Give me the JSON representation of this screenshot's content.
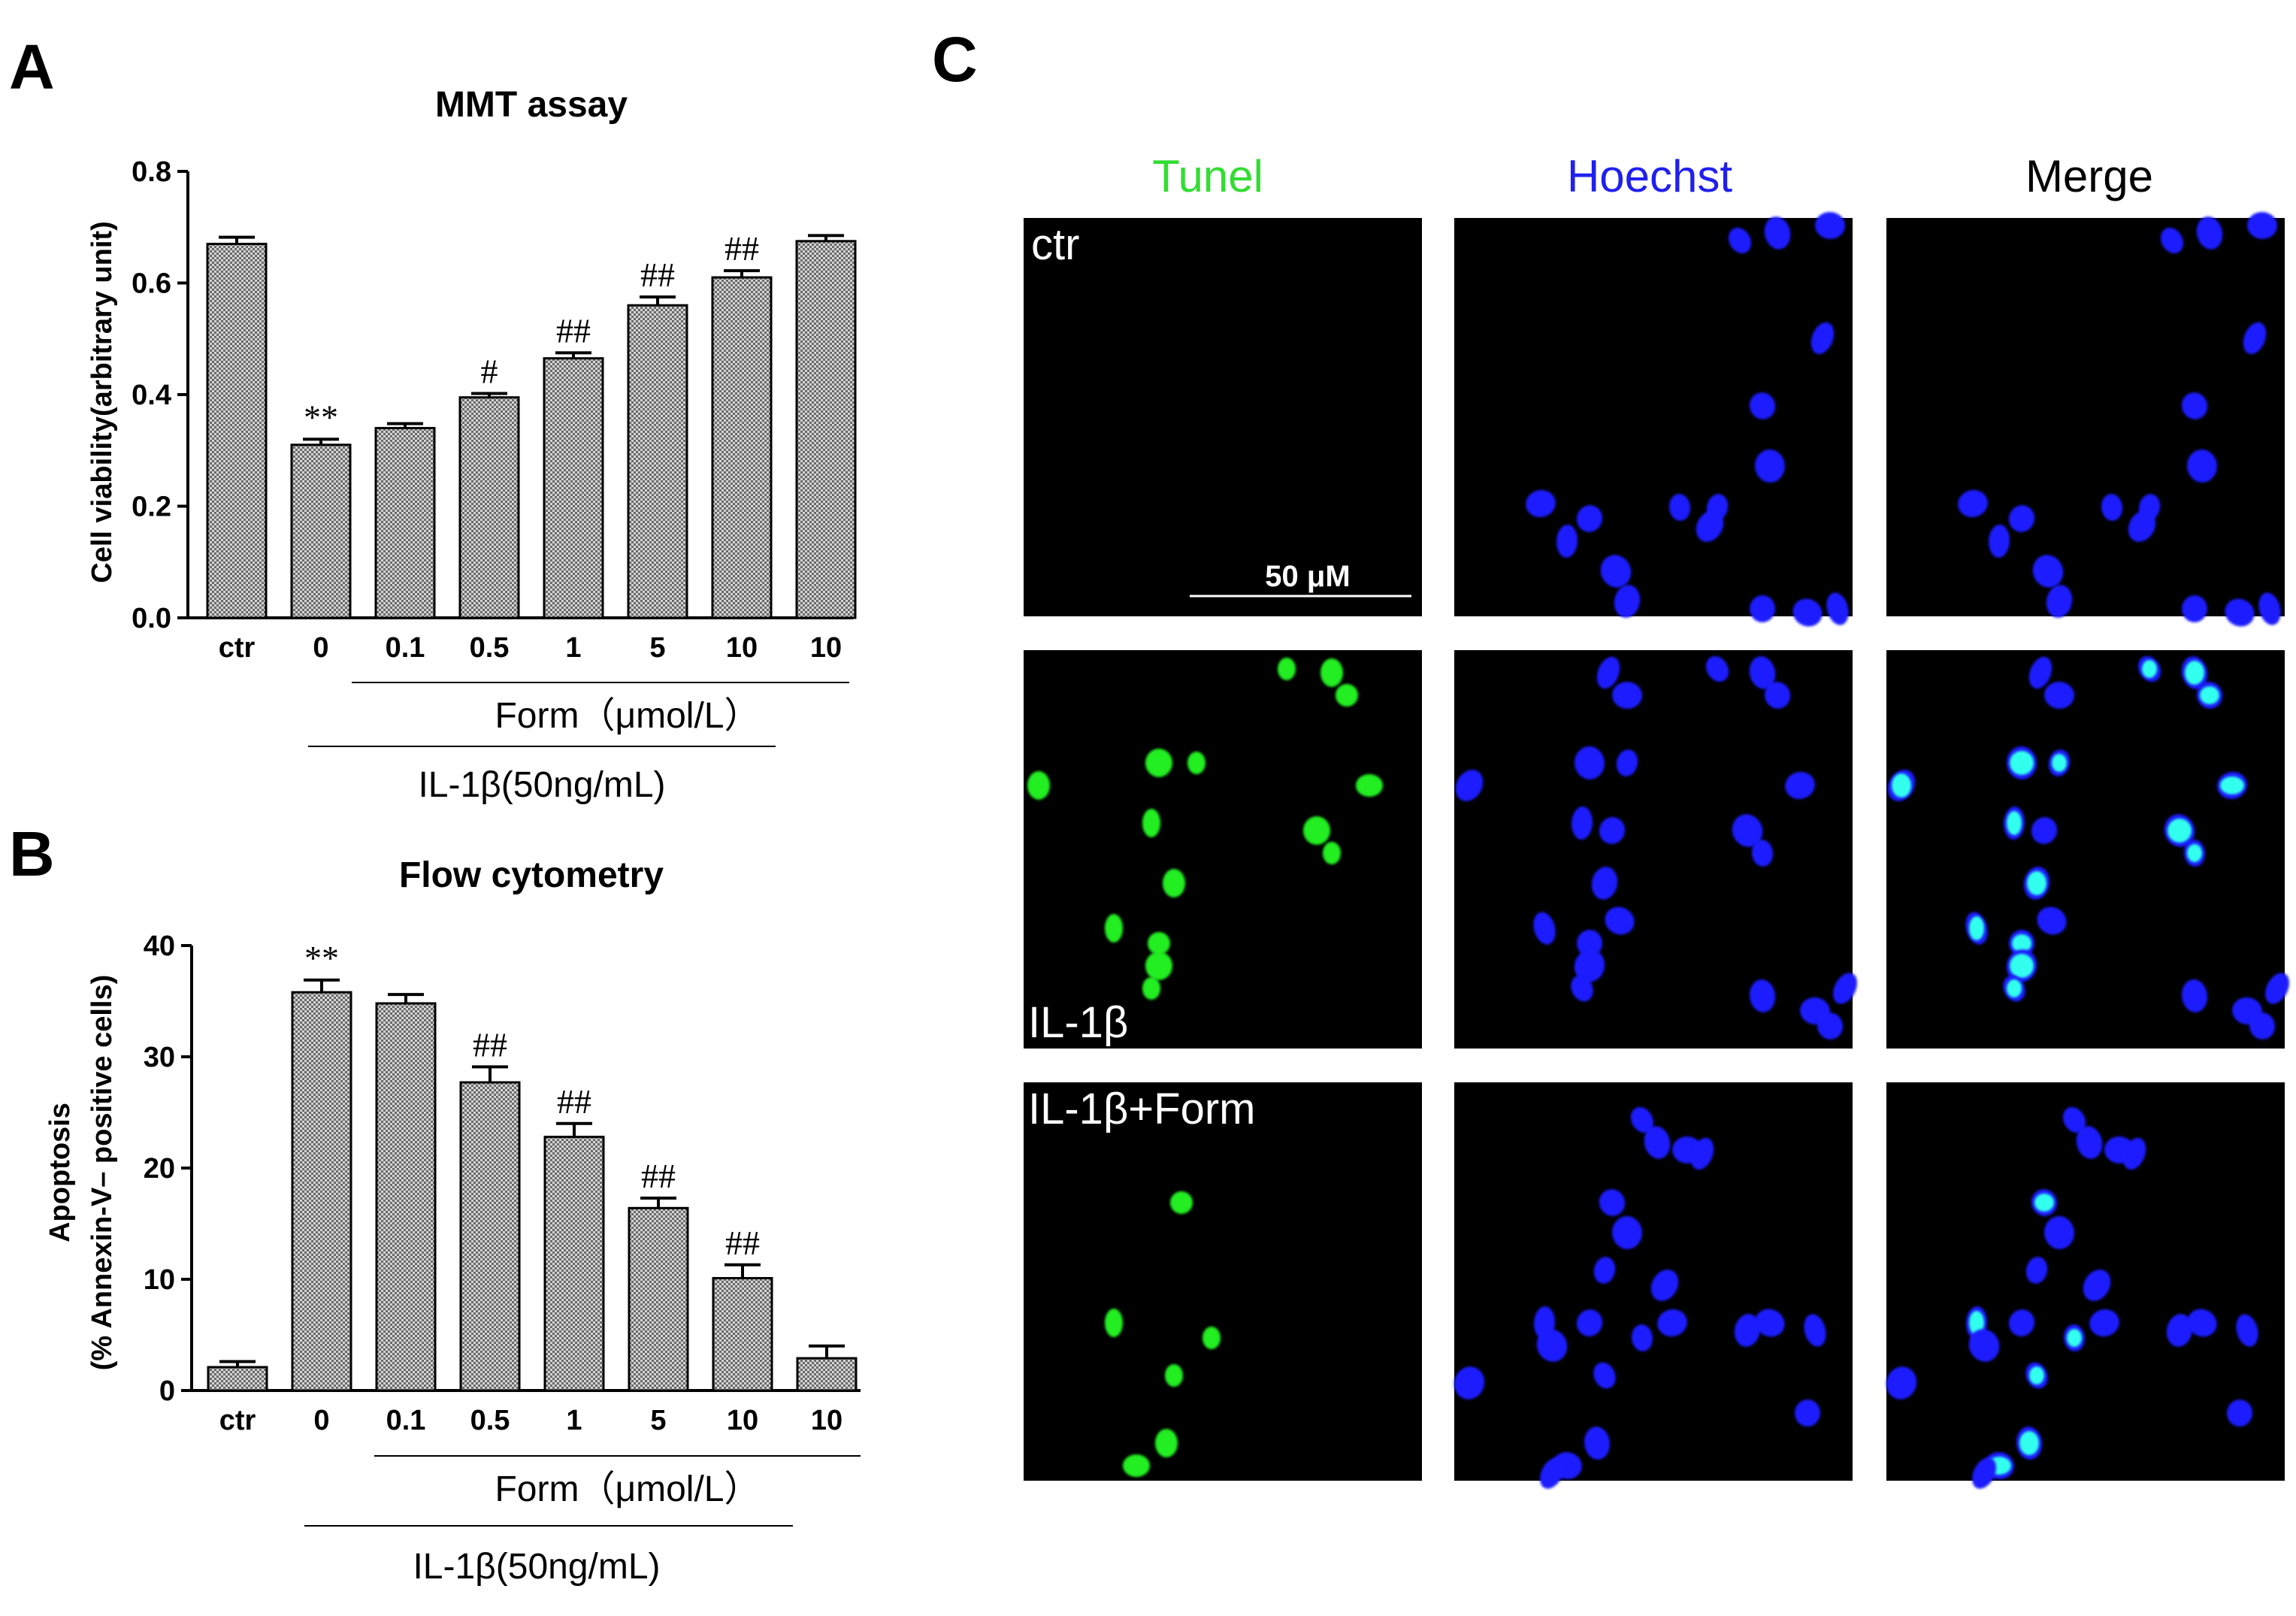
{
  "panels": {
    "a": "A",
    "b": "B",
    "c": "C"
  },
  "chart_data": [
    {
      "type": "bar",
      "title": "MMT assay",
      "ylabel": "Cell viability(arbitrary unit)",
      "ylim": [
        0,
        0.8
      ],
      "yticks": [
        "0.0",
        "0.2",
        "0.4",
        "0.6",
        "0.8"
      ],
      "categories": [
        "ctr",
        "0",
        "0.1",
        "0.5",
        "1",
        "5",
        "10",
        "10"
      ],
      "values": [
        0.67,
        0.31,
        0.34,
        0.395,
        0.465,
        0.56,
        0.61,
        0.675
      ],
      "errors": [
        0.012,
        0.01,
        0.008,
        0.007,
        0.01,
        0.015,
        0.012,
        0.01
      ],
      "annotations": [
        "",
        "**",
        "",
        "#",
        "##",
        "##",
        "##",
        ""
      ],
      "group_labels": {
        "form": "Form（μmol/L）",
        "il1b": "IL-1β(50ng/mL)"
      }
    },
    {
      "type": "bar",
      "title": "Flow cytometry",
      "ylabel": "Apoptosis",
      "ylabel2": "(% Annexin-V–  positive cells)",
      "ylim": [
        0,
        40
      ],
      "yticks": [
        "0",
        "10",
        "20",
        "30",
        "40"
      ],
      "categories": [
        "ctr",
        "0",
        "0.1",
        "0.5",
        "1",
        "5",
        "10",
        "10"
      ],
      "values": [
        2.1,
        35.8,
        34.8,
        27.7,
        22.8,
        16.4,
        10.1,
        2.9
      ],
      "errors": [
        0.5,
        1.1,
        0.8,
        1.4,
        1.2,
        0.9,
        1.2,
        1.1
      ],
      "annotations": [
        "",
        "**",
        "",
        "##",
        "##",
        "##",
        "##",
        ""
      ],
      "group_labels": {
        "form": "Form（μmol/L）",
        "il1b": "IL-1β(50ng/mL)"
      }
    }
  ],
  "microscopy": {
    "columns": [
      {
        "label": "Tunel",
        "color": "#33dd33"
      },
      {
        "label": "Hoechst",
        "color": "#2020ee"
      },
      {
        "label": "Merge",
        "color": "#000000"
      }
    ],
    "rows": [
      {
        "label": "ctr"
      },
      {
        "label": "IL-1β"
      },
      {
        "label": "IL-1β+Form"
      }
    ],
    "scale_bar": "50 μM"
  },
  "colors": {
    "tunel_green": "#22ee22",
    "hoechst_blue": "#1a1aff",
    "merge_cyan": "#33ffee",
    "bar_fill": "#b8b8b8"
  }
}
